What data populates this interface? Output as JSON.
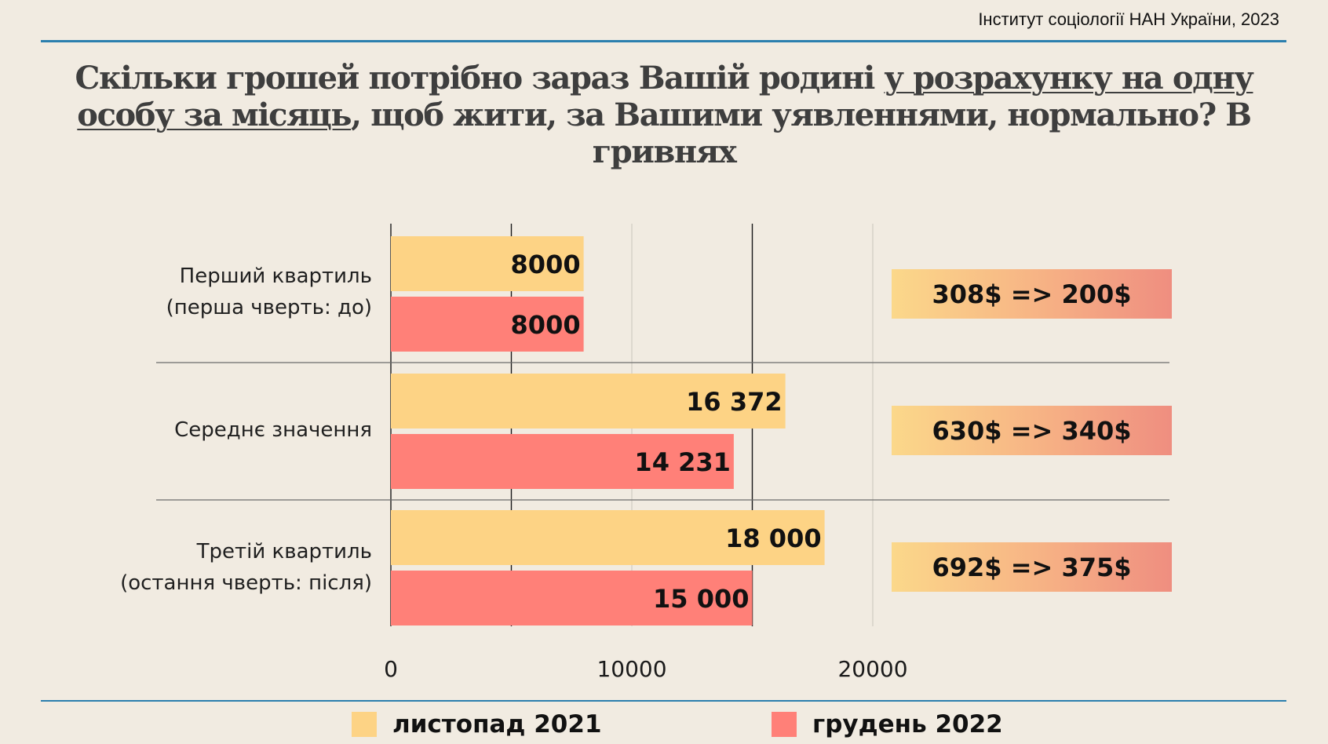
{
  "source": "Інститут соціології НАН України, 2023",
  "title": {
    "part1": "Скільки грошей потрібно зараз Вашій родині ",
    "underlined": "у розрахунку на одну особу за місяць",
    "part2": ", щоб жити, за Вашими уявленнями, нормально? В гривнях"
  },
  "colors": {
    "series1": "#fdd385",
    "series2": "#ff8078",
    "axis": "#1a1a1a",
    "grid": "#c9c4ba"
  },
  "rows": [
    {
      "label_line1": "Перший квартиль",
      "label_line2": "(перша чверть: до)",
      "usd": "308$ => 200$"
    },
    {
      "label_line1": "Середнє значення",
      "label_line2": "",
      "usd": "630$ => 340$"
    },
    {
      "label_line1": "Третій квартиль",
      "label_line2": "(остання чверть: після)",
      "usd": "692$ => 375$"
    }
  ],
  "legend": [
    {
      "label": "листопад 2021"
    },
    {
      "label": "грудень 2022"
    }
  ],
  "chart_data": {
    "type": "bar",
    "orientation": "horizontal",
    "categories": [
      "Перший квартиль (перша чверть: до)",
      "Середнє значення",
      "Третій квартиль (остання чверть: після)"
    ],
    "series": [
      {
        "name": "листопад 2021",
        "values": [
          8000,
          16372,
          18000
        ],
        "labels": [
          "8000",
          "16 372",
          "18 000"
        ]
      },
      {
        "name": "грудень 2022",
        "values": [
          8000,
          14231,
          15000
        ],
        "labels": [
          "8000",
          "14 231",
          "15 000"
        ]
      }
    ],
    "xlim": [
      0,
      25000
    ],
    "xticks": [
      0,
      10000,
      20000
    ],
    "xtick_labels": [
      "0",
      "10000",
      "20000"
    ],
    "gridlines": [
      0,
      5000,
      10000,
      15000,
      20000
    ],
    "grid": true
  }
}
